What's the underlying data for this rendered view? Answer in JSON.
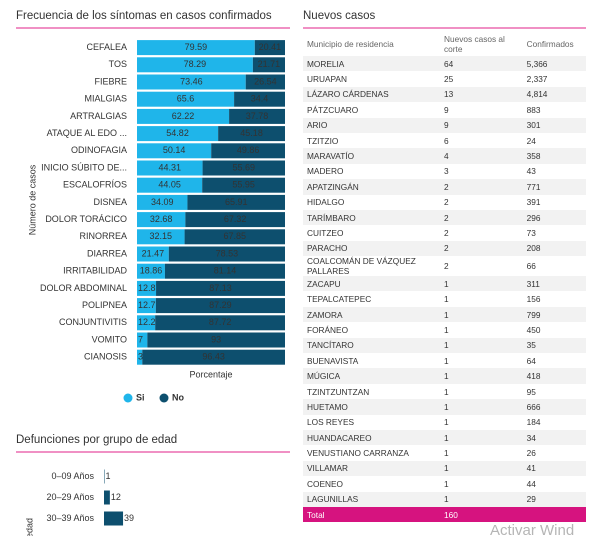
{
  "chart_data": [
    {
      "type": "bar",
      "orientation": "horizontal",
      "stacked": true,
      "title": "Frecuencia de los síntomas en casos confirmados",
      "y_label": "Número de casos",
      "x_label": "Porcentaje",
      "xlim": [
        0,
        100
      ],
      "legend": "bottom",
      "categories": [
        "CEFALEA",
        "TOS",
        "FIEBRE",
        "MIALGIAS",
        "ARTRALGIAS",
        "ATAQUE AL EDO ...",
        "ODINOFAGIA",
        "INICIO SÚBITO DE...",
        "ESCALOFRÍOS",
        "DISNEA",
        "DOLOR TORÁCICO",
        "RINORREA",
        "DIARREA",
        "IRRITABILIDAD",
        "DOLOR ABDOMINAL",
        "POLIPNEA",
        "CONJUNTIVITIS",
        "VOMITO",
        "CIANOSIS"
      ],
      "series": [
        {
          "name": "Si",
          "color": "#1fb5ea",
          "values": [
            79.59,
            78.29,
            73.46,
            65.6,
            62.22,
            54.82,
            50.14,
            44.31,
            44.05,
            34.09,
            32.68,
            32.15,
            21.47,
            18.86,
            12.87,
            12.71,
            12.28,
            7,
            3.57
          ]
        },
        {
          "name": "No",
          "color": "#0d4f6e",
          "values": [
            20.41,
            21.71,
            26.54,
            34.4,
            37.78,
            45.18,
            49.86,
            55.69,
            55.95,
            65.91,
            67.32,
            67.85,
            78.53,
            81.14,
            87.13,
            87.29,
            87.72,
            93,
            96.43
          ]
        }
      ]
    },
    {
      "type": "bar",
      "orientation": "horizontal",
      "title": "Defunciones por grupo de edad",
      "y_label": "edad",
      "xlim": [
        0,
        350
      ],
      "color": "#0d4f6e",
      "categories": [
        "0–09 Años",
        "20–29 Años",
        "30–39 Años"
      ],
      "values": [
        1,
        12,
        39
      ]
    }
  ],
  "table": {
    "title": "Nuevos casos",
    "columns": [
      "Municipio de residencia",
      "Nuevos casos al corte",
      "Confirmados"
    ],
    "rows": [
      [
        "MORELIA",
        "64",
        "5,366"
      ],
      [
        "URUAPAN",
        "25",
        "2,337"
      ],
      [
        "LÁZARO CÁRDENAS",
        "13",
        "4,814"
      ],
      [
        "PÁTZCUARO",
        "9",
        "883"
      ],
      [
        "ARIO",
        "9",
        "301"
      ],
      [
        "TZITZIO",
        "6",
        "24"
      ],
      [
        "MARAVATÍO",
        "4",
        "358"
      ],
      [
        "MADERO",
        "3",
        "43"
      ],
      [
        "APATZINGÁN",
        "2",
        "771"
      ],
      [
        "HIDALGO",
        "2",
        "391"
      ],
      [
        "TARÍMBARO",
        "2",
        "296"
      ],
      [
        "CUITZEO",
        "2",
        "73"
      ],
      [
        "PARACHO",
        "2",
        "208"
      ],
      [
        "COALCOMÁN DE VÁZQUEZ PALLARES",
        "2",
        "66"
      ],
      [
        "ZACAPU",
        "1",
        "311"
      ],
      [
        "TEPALCATEPEC",
        "1",
        "156"
      ],
      [
        "ZAMORA",
        "1",
        "799"
      ],
      [
        "FORÁNEO",
        "1",
        "450"
      ],
      [
        "TANCÍTARO",
        "1",
        "35"
      ],
      [
        "BUENAVISTA",
        "1",
        "64"
      ],
      [
        "MÚGICA",
        "1",
        "418"
      ],
      [
        "TZINTZUNTZAN",
        "1",
        "95"
      ],
      [
        "HUETAMO",
        "1",
        "666"
      ],
      [
        "LOS REYES",
        "1",
        "184"
      ],
      [
        "HUANDACAREO",
        "1",
        "34"
      ],
      [
        "VENUSTIANO CARRANZA",
        "1",
        "26"
      ],
      [
        "VILLAMAR",
        "1",
        "41"
      ],
      [
        "COENEO",
        "1",
        "44"
      ],
      [
        "LAGUNILLAS",
        "1",
        "29"
      ]
    ],
    "total": [
      "Total",
      "160"
    ]
  },
  "watermark": "Activar Wind"
}
